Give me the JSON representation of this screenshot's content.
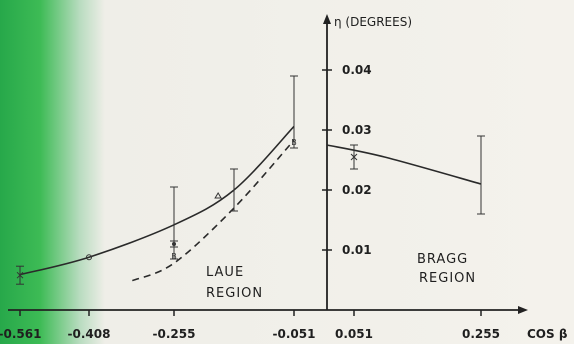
{
  "chart_data": {
    "type": "line",
    "ylabel": "η (DEGREES)",
    "xlabel": "COS β",
    "x_tick_labels": [
      "-0.561",
      "-0.408",
      "-0.255",
      "-0.051",
      "0.051",
      "0.255"
    ],
    "y_tick_labels": [
      "0.01",
      "0.02",
      "0.03",
      "0.04"
    ],
    "ylim": [
      0,
      0.05
    ],
    "region_labels": {
      "laue": [
        "LAUE",
        "REGION"
      ],
      "bragg": [
        "BRAGG",
        "REGION"
      ]
    },
    "series": [
      {
        "style": "solid",
        "region": "laue",
        "points": [
          [
            -0.561,
            0.0059
          ],
          [
            -0.408,
            0.0088
          ],
          [
            -0.255,
            0.0142
          ],
          [
            -0.153,
            0.02
          ],
          [
            -0.051,
            0.0306
          ]
        ]
      },
      {
        "style": "dashed",
        "region": "laue",
        "points": [
          [
            -0.33,
            0.0049
          ],
          [
            -0.255,
            0.0078
          ],
          [
            -0.153,
            0.017
          ],
          [
            -0.051,
            0.0283
          ]
        ]
      },
      {
        "style": "solid",
        "region": "bragg",
        "points": [
          [
            0.0,
            0.0275
          ],
          [
            0.1,
            0.0255
          ],
          [
            0.255,
            0.021
          ]
        ]
      }
    ],
    "points": [
      {
        "x": -0.561,
        "y": 0.0058,
        "yerr": 0.0015,
        "marker": "x"
      },
      {
        "x": -0.408,
        "y": 0.0088,
        "yerr": 0.0,
        "marker": "circle"
      },
      {
        "x": -0.255,
        "y": 0.011,
        "yerr": 0.0005,
        "marker": "dot"
      },
      {
        "x": -0.255,
        "y": 0.009,
        "yerr": 0.0,
        "marker": "B"
      },
      {
        "x": -0.255,
        "y": 0.0145,
        "yerr": 0.006,
        "marker": "none"
      },
      {
        "x": -0.18,
        "y": 0.019,
        "yerr": 0.0,
        "marker": "triangle"
      },
      {
        "x": -0.153,
        "y": 0.02,
        "yerr": 0.0035,
        "marker": "none"
      },
      {
        "x": -0.051,
        "y": 0.033,
        "yerr": 0.006,
        "marker": "none"
      },
      {
        "x": -0.051,
        "y": 0.028,
        "yerr": 0.0,
        "marker": "B"
      },
      {
        "x": 0.051,
        "y": 0.0255,
        "yerr": 0.002,
        "marker": "x"
      },
      {
        "x": 0.255,
        "y": 0.0225,
        "yerr": 0.0065,
        "marker": "none"
      }
    ]
  }
}
